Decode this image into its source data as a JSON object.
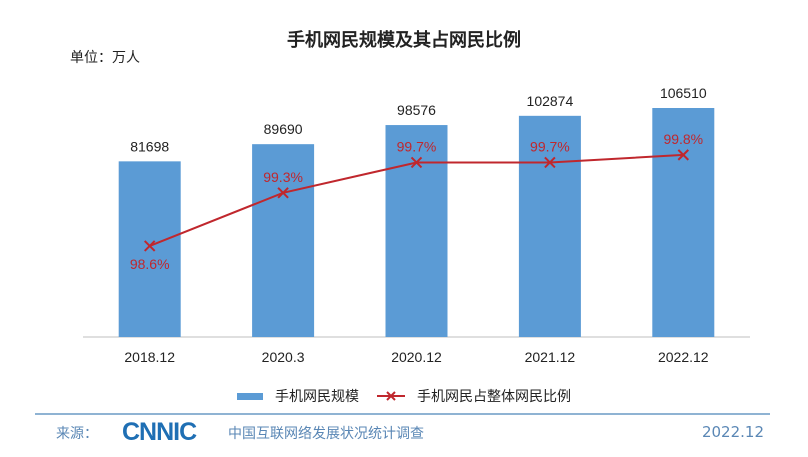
{
  "chart_data": {
    "type": "bar",
    "title": "手机网民规模及其占网民比例",
    "unit_label": "单位：万人",
    "categories": [
      "2018.12",
      "2020.3",
      "2020.12",
      "2021.12",
      "2022.12"
    ],
    "series": [
      {
        "name": "手机网民规模",
        "type": "bar",
        "values": [
          81698,
          89690,
          98576,
          102874,
          106510
        ],
        "labels": [
          "81698",
          "89690",
          "98576",
          "102874",
          "106510"
        ],
        "color": "#5b9bd5"
      },
      {
        "name": "手机网民占整体网民比例",
        "type": "line",
        "values": [
          98.6,
          99.3,
          99.7,
          99.7,
          99.8
        ],
        "labels": [
          "98.6%",
          "99.3%",
          "99.7%",
          "99.7%",
          "99.8%"
        ],
        "color": "#c0272d"
      }
    ],
    "ylim": [
      0,
      120000
    ],
    "y2lim": [
      97.4,
      100.8
    ],
    "grid": false,
    "legend": "bottom"
  },
  "footer": {
    "source_label": "来源：",
    "logo_text": "CNNIC",
    "survey": "中国互联网络发展状况统计调查",
    "date": "2022.12"
  }
}
